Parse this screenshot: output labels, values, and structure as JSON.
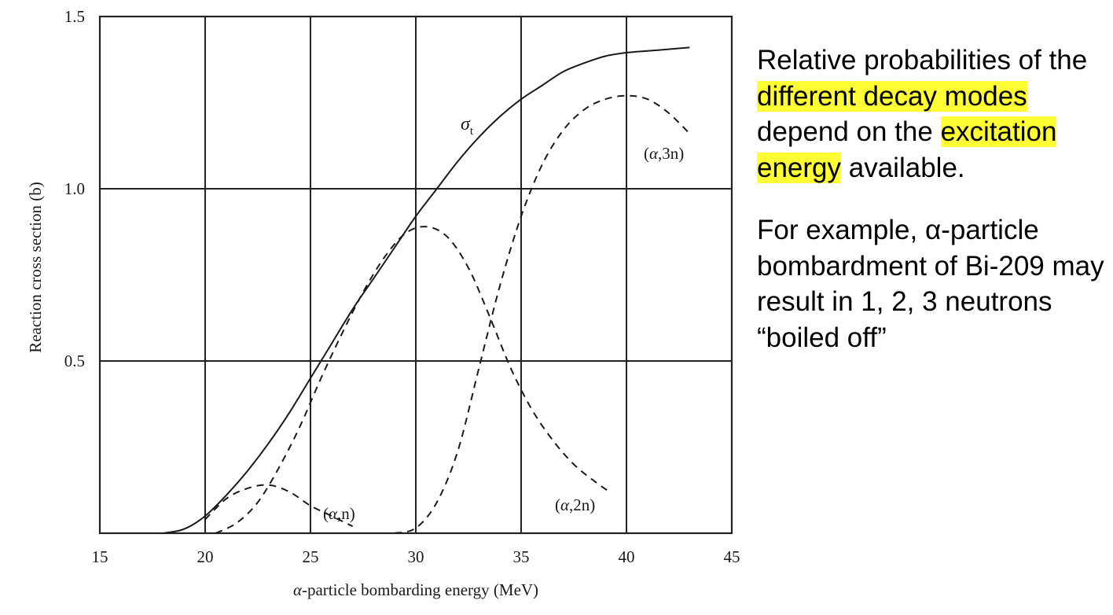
{
  "chart_data": {
    "type": "line",
    "xlabel_prefix": "α",
    "xlabel_rest": "-particle bombarding energy (MeV)",
    "ylabel": "Reaction cross section (b)",
    "xlim": [
      15,
      45
    ],
    "ylim": [
      0,
      1.5
    ],
    "x_ticks": [
      "15",
      "20",
      "25",
      "30",
      "35",
      "40",
      "45"
    ],
    "y_ticks": [
      "1.5",
      "1.0",
      "0.5"
    ],
    "y_tick_values": [
      1.5,
      1.0,
      0.5
    ],
    "grid": true,
    "series": [
      {
        "key": "sigma_t",
        "style": "solid",
        "label_main": "σ",
        "label_sub": "t",
        "points": [
          [
            18,
            0
          ],
          [
            19,
            0.012
          ],
          [
            20,
            0.05
          ],
          [
            21,
            0.11
          ],
          [
            22,
            0.18
          ],
          [
            23,
            0.26
          ],
          [
            24,
            0.35
          ],
          [
            25,
            0.45
          ],
          [
            26,
            0.55
          ],
          [
            27,
            0.65
          ],
          [
            28,
            0.74
          ],
          [
            29,
            0.83
          ],
          [
            30,
            0.92
          ],
          [
            31,
            1.0
          ],
          [
            32,
            1.08
          ],
          [
            33,
            1.15
          ],
          [
            34,
            1.21
          ],
          [
            35,
            1.26
          ],
          [
            36,
            1.3
          ],
          [
            37,
            1.34
          ],
          [
            38,
            1.365
          ],
          [
            39,
            1.385
          ],
          [
            40,
            1.395
          ],
          [
            41,
            1.4
          ],
          [
            42,
            1.405
          ],
          [
            43,
            1.41
          ]
        ]
      },
      {
        "key": "alpha_n",
        "style": "dash",
        "label_open": "(",
        "label_italic": "α",
        "label_close": ",n)",
        "points": [
          [
            20,
            0.04
          ],
          [
            21,
            0.1
          ],
          [
            22,
            0.13
          ],
          [
            23,
            0.14
          ],
          [
            24,
            0.12
          ],
          [
            25,
            0.08
          ],
          [
            26,
            0.05
          ],
          [
            27,
            0.02
          ]
        ]
      },
      {
        "key": "alpha_2n",
        "style": "dash",
        "label_open": "(",
        "label_italic": "α",
        "label_close": ",2n)",
        "points": [
          [
            20.5,
            0.0
          ],
          [
            21.5,
            0.03
          ],
          [
            22.5,
            0.09
          ],
          [
            23.5,
            0.19
          ],
          [
            24.5,
            0.31
          ],
          [
            25.5,
            0.45
          ],
          [
            26.5,
            0.58
          ],
          [
            27.5,
            0.7
          ],
          [
            28.5,
            0.8
          ],
          [
            29.5,
            0.87
          ],
          [
            30.5,
            0.89
          ],
          [
            31.5,
            0.86
          ],
          [
            32.5,
            0.77
          ],
          [
            33.5,
            0.63
          ],
          [
            34.5,
            0.48
          ],
          [
            35.5,
            0.36
          ],
          [
            36.5,
            0.27
          ],
          [
            37.5,
            0.2
          ],
          [
            38.5,
            0.15
          ],
          [
            39.2,
            0.12
          ]
        ]
      },
      {
        "key": "alpha_3n",
        "style": "dash",
        "label_open": "(",
        "label_italic": "α",
        "label_close": ",3n)",
        "points": [
          [
            29,
            0.0
          ],
          [
            30,
            0.015
          ],
          [
            31,
            0.09
          ],
          [
            32,
            0.24
          ],
          [
            33,
            0.48
          ],
          [
            34,
            0.72
          ],
          [
            35,
            0.92
          ],
          [
            36,
            1.07
          ],
          [
            37,
            1.17
          ],
          [
            38,
            1.23
          ],
          [
            39,
            1.26
          ],
          [
            40,
            1.27
          ],
          [
            41,
            1.26
          ],
          [
            42,
            1.22
          ],
          [
            43,
            1.16
          ]
        ]
      }
    ]
  },
  "notes": {
    "p1_a": "Relative probabilities of the ",
    "p1_hl1": "different decay modes",
    "p1_b": " depend on the ",
    "p1_hl2": "excitation energy",
    "p1_c": " available.",
    "p2": "For example, α-particle bombardment of Bi-209 may result in 1, 2, 3 neutrons “boiled off”"
  }
}
